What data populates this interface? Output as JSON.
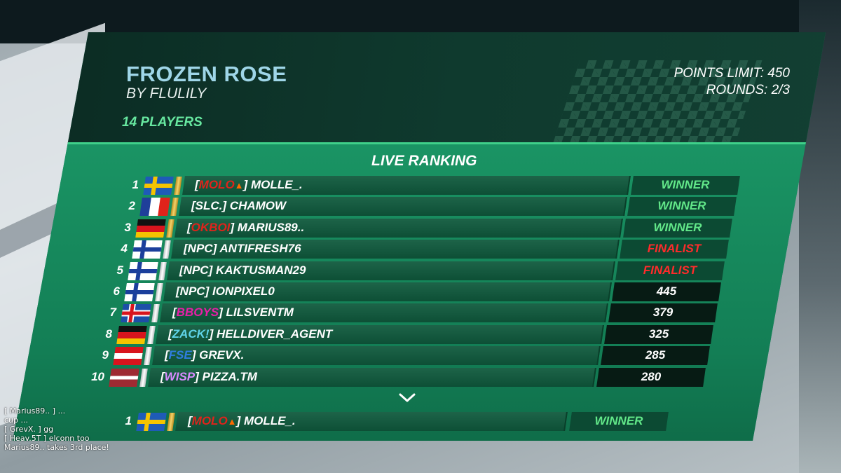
{
  "map": {
    "title": "FROZEN ROSE",
    "author": "BY FLULILY",
    "players": "14 PLAYERS"
  },
  "match": {
    "points_limit": "POINTS LIMIT: 450",
    "rounds": "ROUNDS: 2/3"
  },
  "ranking": {
    "title": "LIVE RANKING",
    "rows": [
      {
        "rank": "1",
        "flag": "sweden",
        "tag": "MOLO",
        "tag_color": "#e0231b",
        "tag_icon": "fire-icon",
        "name": "MOLLE_.",
        "result": "WINNER",
        "result_type": "winner"
      },
      {
        "rank": "2",
        "flag": "france",
        "tag": "SLC.",
        "tag_color": "#ffffff",
        "name": "CHAMOW",
        "result": "WINNER",
        "result_type": "winner"
      },
      {
        "rank": "3",
        "flag": "germany",
        "tag": "OKBOI",
        "tag_color": "#e0231b",
        "name": "MARIUS89..",
        "result": "WINNER",
        "result_type": "winner"
      },
      {
        "rank": "4",
        "flag": "finland",
        "tag": "NPC",
        "tag_color": "#ffffff",
        "name": "ANTIFRESH76",
        "result": "FINALIST",
        "result_type": "finalist"
      },
      {
        "rank": "5",
        "flag": "finland",
        "tag": "NPC",
        "tag_color": "#ffffff",
        "name": "KAKTUSMAN29",
        "result": "FINALIST",
        "result_type": "finalist"
      },
      {
        "rank": "6",
        "flag": "finland",
        "tag": "NPC",
        "tag_color": "#ffffff",
        "name": "IONPIXEL0",
        "result": "445",
        "result_type": "points"
      },
      {
        "rank": "7",
        "flag": "iceland",
        "tag": "BBOYS",
        "tag_color": "#e81ea8",
        "name": "LILSVENTM",
        "result": "379",
        "result_type": "points"
      },
      {
        "rank": "8",
        "flag": "germany",
        "tag": "ZACK!",
        "tag_color": "#5fd3e8",
        "name": "HELLDIVER_AGENT",
        "result": "325",
        "result_type": "points"
      },
      {
        "rank": "9",
        "flag": "austria",
        "tag": "FSE",
        "tag_color": "#2f7de0",
        "name": "GREVX.",
        "result": "285",
        "result_type": "points"
      },
      {
        "rank": "10",
        "flag": "latvia",
        "tag": "WISP",
        "tag_color": "#d98bff",
        "name": "PIZZA.TM",
        "result": "280",
        "result_type": "points"
      }
    ],
    "self_row": {
      "rank": "1",
      "flag": "sweden",
      "tag": "MOLO",
      "tag_color": "#e0231b",
      "tag_icon": "fire-icon",
      "name": "MOLLE_.",
      "result": "WINNER",
      "result_type": "winner"
    }
  },
  "chat": [
    "[ Marius89.. ] ...",
    "cup ...",
    "[ GrevX. ] gg",
    "[ Heav.5T ] elconn too",
    "Marius89.. takes 3rd place!"
  ]
}
